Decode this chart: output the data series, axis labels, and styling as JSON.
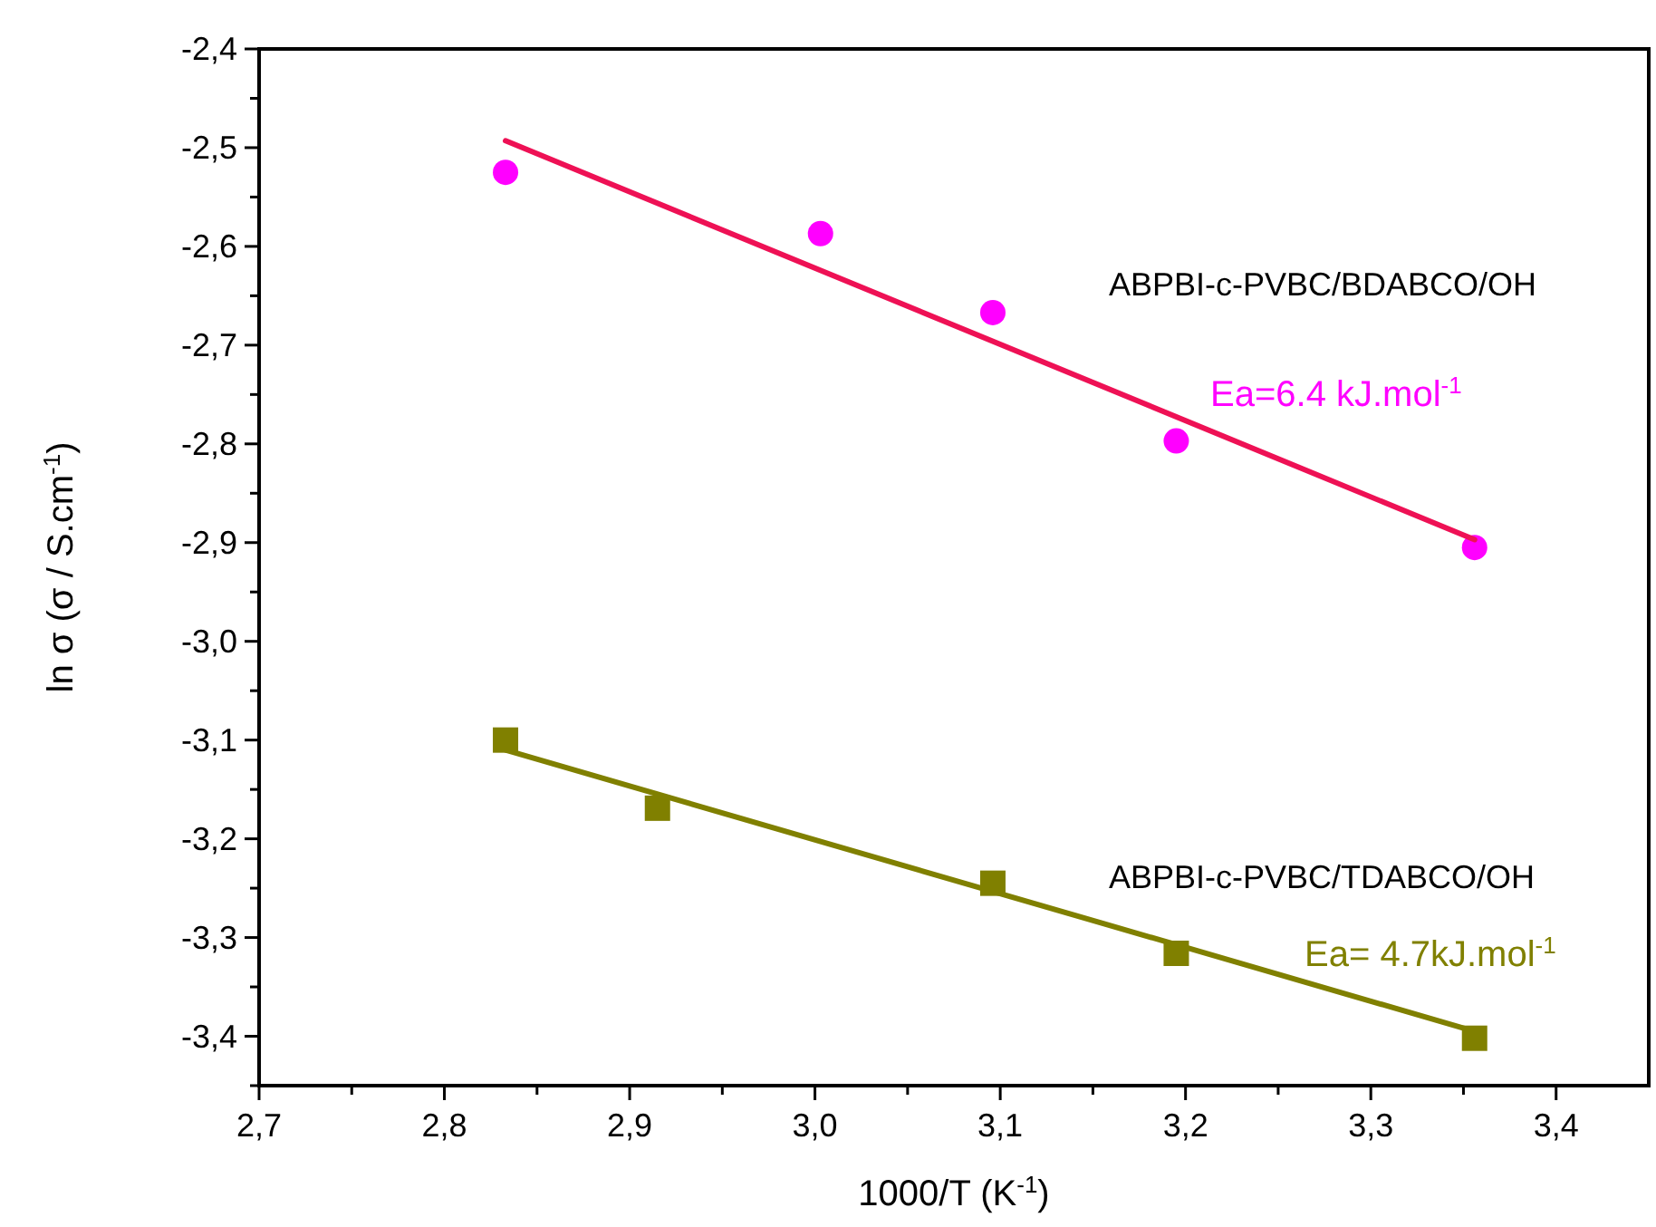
{
  "chart_data": {
    "type": "scatter",
    "xlabel": "1000/T (K$^{-1}$)",
    "ylabel": "ln σ (σ / S.cm$^{-1}$)",
    "xlim": [
      2.7,
      3.45
    ],
    "ylim": [
      -3.45,
      -2.4
    ],
    "xticks": [
      {
        "value": 2.7,
        "label": "2,7"
      },
      {
        "value": 2.75,
        "label": null
      },
      {
        "value": 2.8,
        "label": "2,8"
      },
      {
        "value": 2.85,
        "label": null
      },
      {
        "value": 2.9,
        "label": "2,9"
      },
      {
        "value": 2.95,
        "label": null
      },
      {
        "value": 3.0,
        "label": "3,0"
      },
      {
        "value": 3.05,
        "label": null
      },
      {
        "value": 3.1,
        "label": "3,1"
      },
      {
        "value": 3.15,
        "label": null
      },
      {
        "value": 3.2,
        "label": "3,2"
      },
      {
        "value": 3.25,
        "label": null
      },
      {
        "value": 3.3,
        "label": "3,3"
      },
      {
        "value": 3.35,
        "label": null
      },
      {
        "value": 3.4,
        "label": "3,4"
      }
    ],
    "yticks": [
      {
        "value": -2.4,
        "label": "-2,4"
      },
      {
        "value": -2.45,
        "label": null
      },
      {
        "value": -2.5,
        "label": "-2,5"
      },
      {
        "value": -2.55,
        "label": null
      },
      {
        "value": -2.6,
        "label": "-2,6"
      },
      {
        "value": -2.65,
        "label": null
      },
      {
        "value": -2.7,
        "label": "-2,7"
      },
      {
        "value": -2.75,
        "label": null
      },
      {
        "value": -2.8,
        "label": "-2,8"
      },
      {
        "value": -2.85,
        "label": null
      },
      {
        "value": -2.9,
        "label": "-2,9"
      },
      {
        "value": -2.95,
        "label": null
      },
      {
        "value": -3.0,
        "label": "-3,0"
      },
      {
        "value": -3.05,
        "label": null
      },
      {
        "value": -3.1,
        "label": "-3,1"
      },
      {
        "value": -3.15,
        "label": null
      },
      {
        "value": -3.2,
        "label": "-3,2"
      },
      {
        "value": -3.25,
        "label": null
      },
      {
        "value": -3.3,
        "label": "-3,3"
      },
      {
        "value": -3.35,
        "label": null
      },
      {
        "value": -3.4,
        "label": "-3,4"
      },
      {
        "value": -3.45,
        "label": null
      }
    ],
    "grid": false,
    "series": [
      {
        "marker": "circle",
        "color": "#ff00ff",
        "x": [
          2.833,
          3.003,
          3.096,
          3.195,
          3.356
        ],
        "values": [
          -2.525,
          -2.587,
          -2.667,
          -2.797,
          -2.905
        ]
      },
      {
        "type": "line",
        "marker": "none",
        "color": "#ee1155",
        "x": [
          2.833,
          3.356
        ],
        "values": [
          -2.493,
          -2.897
        ]
      },
      {
        "marker": "square",
        "color": "#808000",
        "x": [
          2.833,
          2.915,
          3.096,
          3.195,
          3.356
        ],
        "values": [
          -3.1,
          -3.169,
          -3.245,
          -3.316,
          -3.402
        ]
      },
      {
        "type": "line",
        "marker": "none",
        "color": "#808000",
        "x": [
          2.833,
          3.356
        ],
        "values": [
          -3.11,
          -3.395
        ]
      }
    ],
    "annotations": [
      "ABPBI-c-PVBC/BDABCO/OH",
      "Ea=6.4 kJ.mol$^{-1}$",
      "ABPBI-c-PVBC/TDABCO/OH",
      "Ea= 4.7kJ.mol$^{-1}$"
    ]
  }
}
